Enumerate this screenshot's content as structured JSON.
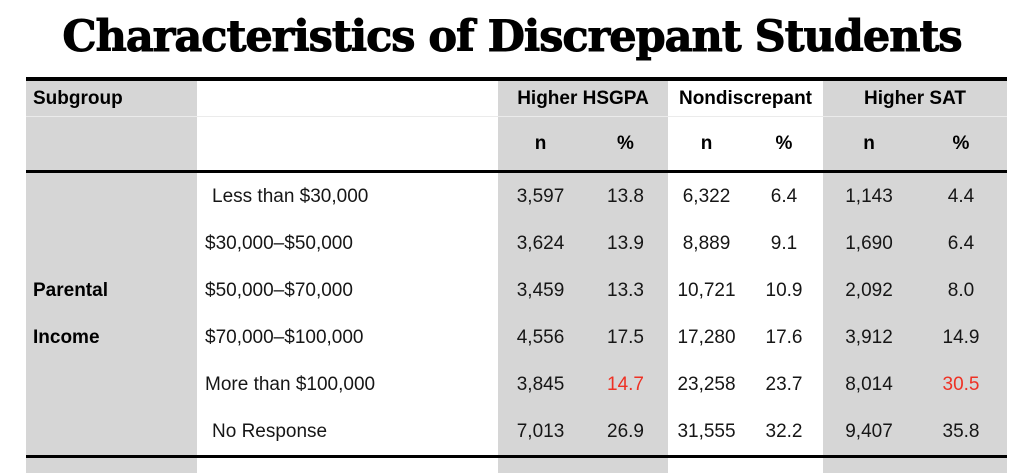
{
  "title": "Characteristics of Discrepant Students",
  "colors": {
    "shaded_column": "#d6d6d6",
    "highlight_red": "#ee3124",
    "border_black": "#000000"
  },
  "header": {
    "subgroup": "Subgroup",
    "groups": [
      {
        "label": "Higher HSGPA"
      },
      {
        "label": "Nondiscrepant"
      },
      {
        "label": "Higher SAT"
      }
    ],
    "n_label": "n",
    "pct_label": "%"
  },
  "row_group": {
    "line1": "Parental",
    "line2": "Income"
  },
  "rows": [
    {
      "label": "Less than $30,000",
      "hsgpa_n": "3,597",
      "hsgpa_pct": "13.8",
      "nondiscrepant_n": "6,322",
      "nondiscrepant_pct": "6.4",
      "sat_n": "1,143",
      "sat_pct": "4.4"
    },
    {
      "label": "$30,000–$50,000",
      "hsgpa_n": "3,624",
      "hsgpa_pct": "13.9",
      "nondiscrepant_n": "8,889",
      "nondiscrepant_pct": "9.1",
      "sat_n": "1,690",
      "sat_pct": "6.4"
    },
    {
      "label": "$50,000–$70,000",
      "hsgpa_n": "3,459",
      "hsgpa_pct": "13.3",
      "nondiscrepant_n": "10,721",
      "nondiscrepant_pct": "10.9",
      "sat_n": "2,092",
      "sat_pct": "8.0"
    },
    {
      "label": "$70,000–$100,000",
      "hsgpa_n": "4,556",
      "hsgpa_pct": "17.5",
      "nondiscrepant_n": "17,280",
      "nondiscrepant_pct": "17.6",
      "sat_n": "3,912",
      "sat_pct": "14.9"
    },
    {
      "label": "More than $100,000",
      "hsgpa_n": "3,845",
      "hsgpa_pct": "14.7",
      "nondiscrepant_n": "23,258",
      "nondiscrepant_pct": "23.7",
      "sat_n": "8,014",
      "sat_pct": "30.5"
    },
    {
      "label": "No Response",
      "hsgpa_n": "7,013",
      "hsgpa_pct": "26.9",
      "nondiscrepant_n": "31,555",
      "nondiscrepant_pct": "32.2",
      "sat_n": "9,407",
      "sat_pct": "35.8"
    }
  ]
}
